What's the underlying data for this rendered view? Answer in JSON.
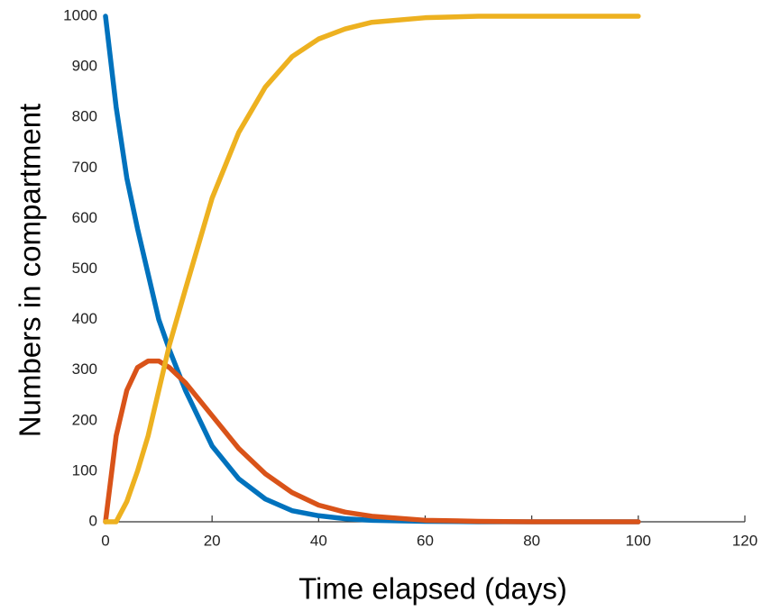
{
  "chart_data": {
    "type": "line",
    "x_label": "Time elapsed (days)",
    "y_label": "Numbers in compartment",
    "x": [
      0,
      2,
      4,
      6,
      8,
      10,
      12,
      15,
      20,
      25,
      30,
      35,
      40,
      45,
      50,
      60,
      70,
      80,
      100
    ],
    "series": [
      {
        "color": "#0072bd",
        "values": [
          1000,
          820,
          680,
          580,
          490,
          400,
          340,
          260,
          150,
          85,
          45,
          22,
          12,
          6,
          3,
          1,
          0,
          0,
          0
        ]
      },
      {
        "color": "#d95319",
        "values": [
          0,
          170,
          260,
          305,
          318,
          318,
          305,
          275,
          210,
          145,
          95,
          58,
          33,
          19,
          11,
          3,
          1,
          0,
          0
        ]
      },
      {
        "color": "#edb120",
        "values": [
          0,
          0,
          40,
          100,
          170,
          260,
          350,
          460,
          640,
          770,
          860,
          920,
          955,
          975,
          988,
          997,
          1000,
          1000,
          1000
        ]
      }
    ],
    "xlim": [
      0,
      120
    ],
    "xticks": [
      0,
      20,
      40,
      60,
      80,
      100,
      120
    ],
    "ylim": [
      0,
      1000
    ],
    "yticks": [
      0,
      100,
      200,
      300,
      400,
      500,
      600,
      700,
      800,
      900,
      1000
    ],
    "grid": false
  }
}
